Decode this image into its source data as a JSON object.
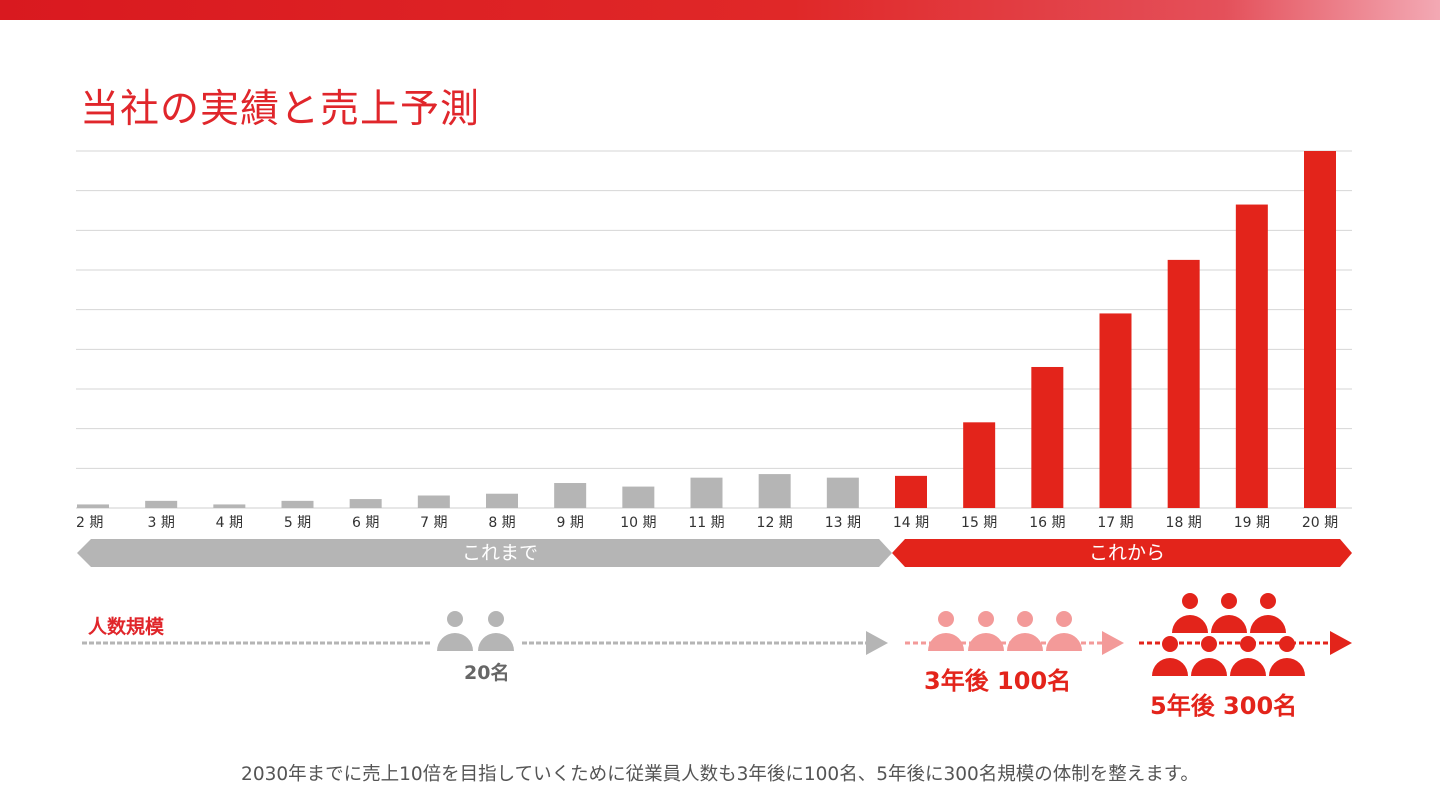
{
  "title": "当社の実績と売上予測",
  "colors": {
    "past": "#b5b5b5",
    "future": "#e3241b",
    "light": "#f39a99",
    "title": "#e0262b"
  },
  "chart_data": {
    "type": "bar",
    "categories": [
      "2 期",
      "3 期",
      "4 期",
      "5 期",
      "6 期",
      "7 期",
      "8 期",
      "9 期",
      "10 期",
      "11 期",
      "12 期",
      "13 期",
      "14 期",
      "15 期",
      "16 期",
      "17 期",
      "18 期",
      "19 期",
      "20 期"
    ],
    "values": [
      1,
      2,
      1,
      2,
      2.5,
      3.5,
      4,
      7,
      6,
      8.5,
      9.5,
      8.5,
      9,
      24,
      39.5,
      54.5,
      69.5,
      85,
      100
    ],
    "ylim": [
      0,
      100
    ],
    "grid": true,
    "past_count": 12
  },
  "band": {
    "past_label": "これまで",
    "future_label": "これから"
  },
  "people": {
    "label": "人数規模",
    "now": "20名",
    "three_years": "3年後 100名",
    "five_years": "5年後 300名"
  },
  "caption": "2030年までに売上10倍を目指していくために従業員人数も3年後に100名、5年後に300名規模の体制を整えます。"
}
